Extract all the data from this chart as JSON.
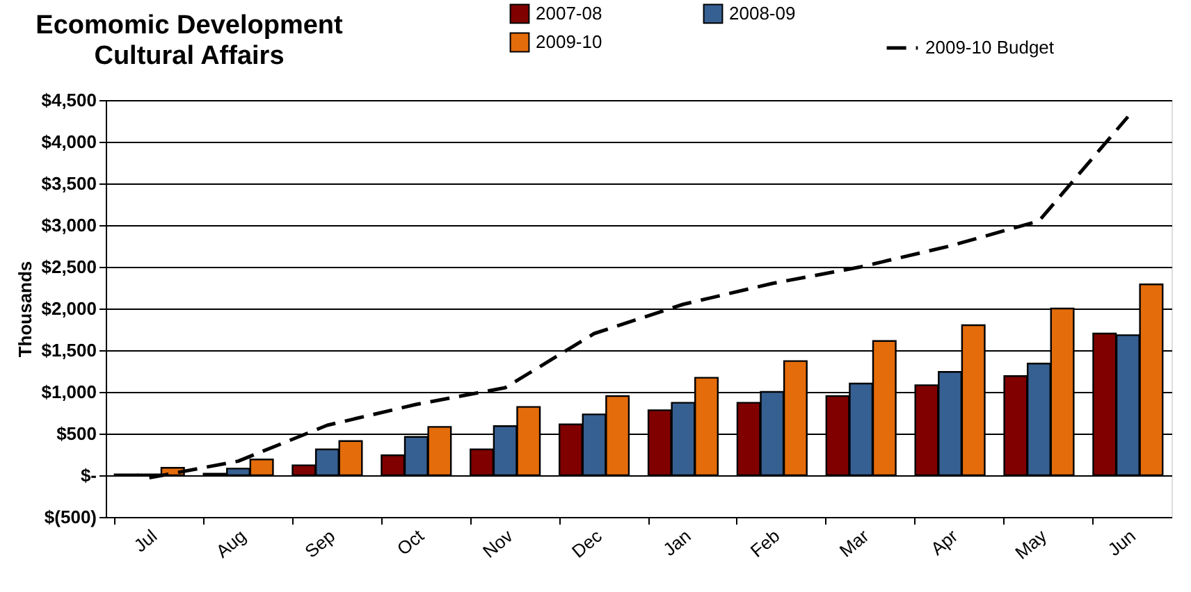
{
  "chart_data": {
    "type": "bar",
    "title": [
      "Ecomomic Development",
      "Cultural Affairs"
    ],
    "ylabel": "Thousands",
    "categories": [
      "Jul",
      "Aug",
      "Sep",
      "Oct",
      "Nov",
      "Dec",
      "Jan",
      "Feb",
      "Mar",
      "Apr",
      "May",
      "Jun"
    ],
    "series": [
      {
        "name": "2007-08",
        "color": "#800000",
        "values": [
          10,
          20,
          120,
          240,
          310,
          610,
          780,
          870,
          950,
          1080,
          1190,
          1700
        ]
      },
      {
        "name": "2008-09",
        "color": "#376092",
        "values": [
          10,
          80,
          310,
          460,
          590,
          730,
          870,
          1000,
          1100,
          1240,
          1340,
          1680
        ]
      },
      {
        "name": "2009-10",
        "color": "#e46c0a",
        "values": [
          90,
          190,
          410,
          580,
          820,
          950,
          1170,
          1370,
          1610,
          1800,
          2000,
          2290
        ]
      },
      {
        "name": "2009-10 Budget",
        "type": "line",
        "color": "#000000",
        "line_style": "dashed",
        "marker": "none",
        "values": [
          -30,
          170,
          600,
          850,
          1050,
          1700,
          2050,
          2300,
          2500,
          2750,
          3050,
          4300
        ]
      }
    ],
    "ylim": [
      -500,
      4500
    ],
    "yticks": [
      {
        "value": -500,
        "label": "$(500)"
      },
      {
        "value": 0,
        "label": "$-"
      },
      {
        "value": 500,
        "label": "$500"
      },
      {
        "value": 1000,
        "label": "$1,000"
      },
      {
        "value": 1500,
        "label": "$1,500"
      },
      {
        "value": 2000,
        "label": "$2,000"
      },
      {
        "value": 2500,
        "label": "$2,500"
      },
      {
        "value": 3000,
        "label": "$3,000"
      },
      {
        "value": 3500,
        "label": "$3,500"
      },
      {
        "value": 4000,
        "label": "$4,000"
      },
      {
        "value": 4500,
        "label": "$4,500"
      }
    ],
    "grid": "y",
    "legend": "top right"
  }
}
